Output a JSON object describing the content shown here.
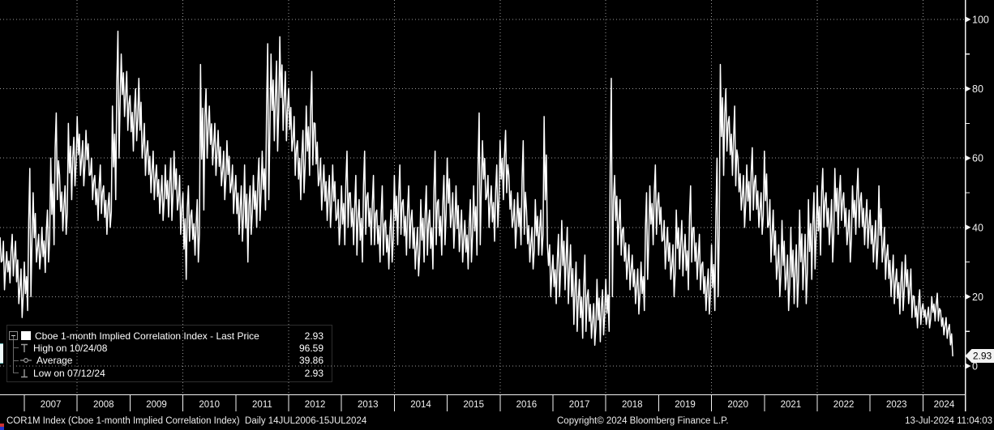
{
  "colors": {
    "background": "#000000",
    "line": "#ffffff",
    "grid": "#9a9a9a",
    "axis": "#f2f2f2",
    "badge_bg": "#f2f2f2",
    "badge_text": "#000000",
    "legend_tree": "#8a8a8a"
  },
  "legend": {
    "rows": [
      {
        "icon": "line-swatch",
        "label": "Cboe 1-month Implied Correlation Index - Last Price",
        "value": "2.93"
      },
      {
        "icon": "high-marker",
        "label": "High on 10/24/08",
        "value": "96.59"
      },
      {
        "icon": "average-marker",
        "label": "Average",
        "value": "39.86"
      },
      {
        "icon": "low-marker",
        "label": "Low on 07/12/24",
        "value": "2.93"
      }
    ]
  },
  "y_axis": {
    "major_ticks": [
      0,
      20,
      40,
      60,
      80,
      100
    ],
    "minor_ticks": [
      10,
      30,
      50,
      70,
      90
    ],
    "last_price_label": "2.93"
  },
  "x_axis": {
    "years": [
      "2007",
      "2008",
      "2009",
      "2010",
      "2011",
      "2012",
      "2013",
      "2014",
      "2015",
      "2016",
      "2017",
      "2018",
      "2019",
      "2020",
      "2021",
      "2022",
      "2023",
      "2024"
    ],
    "gridline_years": [
      2008,
      2010,
      2012,
      2014,
      2016,
      2018,
      2020,
      2022,
      2024
    ]
  },
  "status_bar": {
    "left": "COR1M Index (Cboe 1-month Implied Correlation Index)  Daily 14JUL2006-15JUL2024",
    "center": "Copyright© 2024 Bloomberg Finance L.P.",
    "right": "13-Jul-2024 11:04:03"
  },
  "chart_data": {
    "type": "line",
    "title": "Cboe 1-month Implied Correlation Index - Last Price",
    "ticker": "COR1M Index",
    "start_month": "2006-07",
    "end_month": "2024-07",
    "frequency": "monthly high/low envelope estimated from daily series",
    "ylim": [
      0,
      100
    ],
    "grid": "dotted",
    "legend_position": "bottom-left",
    "stats": {
      "last": 2.93,
      "high": 96.59,
      "high_date": "10/24/08",
      "average": 39.86,
      "low": 2.93,
      "low_date": "07/12/24"
    },
    "monthly_high": [
      40,
      36,
      33,
      38,
      36,
      28,
      30,
      57,
      50,
      38,
      40,
      45,
      60,
      73,
      55,
      52,
      70,
      66,
      72,
      65,
      68,
      60,
      55,
      58,
      52,
      50,
      75,
      96.6,
      90,
      85,
      78,
      80,
      83,
      70,
      65,
      62,
      58,
      55,
      58,
      60,
      62,
      55,
      50,
      52,
      45,
      48,
      87,
      80,
      75,
      70,
      68,
      62,
      65,
      58,
      55,
      52,
      58,
      52,
      55,
      60,
      62,
      93,
      90,
      88,
      95,
      85,
      80,
      72,
      65,
      68,
      75,
      85,
      70,
      60,
      58,
      55,
      58,
      48,
      52,
      62,
      50,
      55,
      48,
      62,
      50,
      55,
      45,
      52,
      42,
      45,
      55,
      58,
      48,
      52,
      45,
      40,
      48,
      52,
      45,
      62,
      48,
      55,
      60,
      50,
      52,
      45,
      42,
      48,
      52,
      73,
      65,
      55,
      52,
      58,
      65,
      68,
      55,
      48,
      50,
      65,
      45,
      40,
      48,
      45,
      72,
      35,
      32,
      38,
      42,
      40,
      35,
      30,
      25,
      32,
      22,
      18,
      25,
      22,
      25,
      83,
      55,
      48,
      40,
      35,
      32,
      28,
      30,
      50,
      52,
      58,
      50,
      42,
      40,
      35,
      45,
      42,
      38,
      52,
      40,
      38,
      30,
      28,
      35,
      60,
      87,
      80,
      72,
      75,
      60,
      55,
      58,
      63,
      55,
      50,
      62,
      48,
      45,
      35,
      42,
      32,
      40,
      35,
      45,
      38,
      48,
      50,
      52,
      57,
      50,
      48,
      57,
      55,
      50,
      45,
      52,
      57,
      50,
      48,
      45,
      42,
      52,
      40,
      35,
      32,
      28,
      30,
      32,
      28,
      20,
      22,
      18,
      17,
      20,
      21,
      16,
      14,
      12
    ],
    "monthly_low": [
      30,
      22,
      24,
      26,
      18,
      14,
      16,
      20,
      30,
      28,
      27,
      30,
      35,
      48,
      39,
      38,
      48,
      52,
      55,
      52,
      55,
      48,
      42,
      44,
      38,
      40,
      48,
      60,
      72,
      68,
      62,
      65,
      60,
      55,
      50,
      48,
      44,
      42,
      43,
      42,
      45,
      38,
      25,
      36,
      32,
      30,
      45,
      60,
      58,
      55,
      52,
      48,
      50,
      44,
      38,
      36,
      30,
      38,
      40,
      42,
      45,
      48,
      65,
      62,
      68,
      65,
      62,
      55,
      48,
      50,
      55,
      58,
      52,
      45,
      42,
      40,
      42,
      35,
      35,
      40,
      35,
      32,
      30,
      38,
      35,
      35,
      30,
      32,
      28,
      30,
      35,
      38,
      32,
      34,
      28,
      26,
      30,
      32,
      28,
      35,
      32,
      35,
      40,
      34,
      33,
      30,
      28,
      30,
      32,
      35,
      48,
      40,
      36,
      40,
      48,
      50,
      40,
      34,
      35,
      38,
      30,
      28,
      32,
      32,
      35,
      20,
      18,
      20,
      22,
      18,
      12,
      10,
      8,
      10,
      8,
      6,
      7,
      9,
      10,
      20,
      35,
      32,
      25,
      22,
      18,
      15,
      16,
      25,
      35,
      38,
      36,
      28,
      25,
      20,
      28,
      26,
      22,
      30,
      25,
      22,
      16,
      15,
      16,
      20,
      55,
      62,
      55,
      52,
      45,
      40,
      42,
      45,
      40,
      38,
      40,
      30,
      25,
      20,
      22,
      16,
      18,
      17,
      22,
      18,
      25,
      28,
      32,
      40,
      35,
      30,
      38,
      42,
      35,
      30,
      38,
      40,
      35,
      34,
      30,
      28,
      30,
      25,
      20,
      18,
      15,
      16,
      18,
      14,
      11,
      12,
      12,
      11,
      13,
      13,
      9,
      8,
      2.93
    ]
  }
}
